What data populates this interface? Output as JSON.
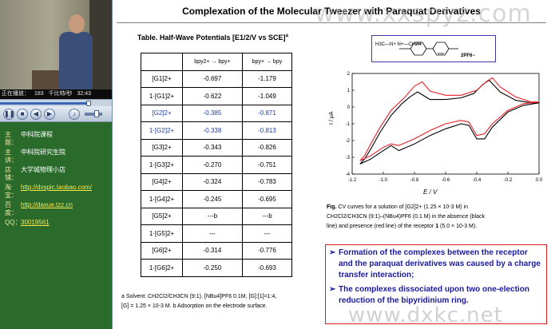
{
  "player": {
    "status": {
      "state": "正在播放：",
      "index": "183",
      "bitrate": "千比特/秒",
      "time": "32:43"
    },
    "seek_progress": 0.79,
    "controls": [
      {
        "name": "pause-button",
        "glyph": "❚❚"
      },
      {
        "name": "stop-button",
        "glyph": "■"
      },
      {
        "name": "previous-button",
        "glyph": "◀"
      },
      {
        "name": "next-button",
        "glyph": "▶"
      },
      {
        "name": "mute-button",
        "glyph": "♪"
      }
    ],
    "volume": 0.7
  },
  "info": {
    "rows": [
      {
        "label": "主题：",
        "value": "中科院课程",
        "link": false
      },
      {
        "label": "主讲：",
        "value": "中科院研究生院",
        "link": false
      },
      {
        "label": "店铺：",
        "value": "大学城物理小店",
        "link": false
      },
      {
        "label": "淘宝：",
        "value": "http://dxspic.taobao.com/",
        "link": true
      },
      {
        "label": "百度：",
        "value": "http://daxue.tzz.cn",
        "link": true
      },
      {
        "label": "QQ：",
        "value": "30019561",
        "link": true
      }
    ]
  },
  "slide": {
    "title": "Complexation of the Molecular Tweezer with Paraquat Derivatives",
    "watermark_top": "www.xxspyz.com",
    "watermark_bottom": "www.dxkc.net",
    "table": {
      "caption": "Table. Half-Wave Potentials [E1/2/V vs SCE]",
      "caption_mark": "a",
      "headers": [
        "",
        "bpy2+ → bpy+",
        "bpy+ → bpy"
      ],
      "rows": [
        {
          "label": "[G1]2+",
          "v1": "-0.697",
          "v2": "-1.179",
          "blue": false
        },
        {
          "label": "1·[G1]2+",
          "v1": "-0.622",
          "v2": "-1.049",
          "blue": false
        },
        {
          "label": "[G2]2+",
          "v1": "-0.385",
          "v2": "-0.871",
          "blue": true
        },
        {
          "label": "1·[G2]2+",
          "v1": "-0.338",
          "v2": "-0.813",
          "blue": true
        },
        {
          "label": "[G3]2+",
          "v1": "-0.343",
          "v2": "-0.826",
          "blue": false
        },
        {
          "label": "1·[G3]2+",
          "v1": "-0.270",
          "v2": "-0.751",
          "blue": false
        },
        {
          "label": "[G4]2+",
          "v1": "-0.324",
          "v2": "-0.783",
          "blue": false
        },
        {
          "label": "1·[G4]2+",
          "v1": "-0.245",
          "v2": "-0.695",
          "blue": false
        },
        {
          "label": "[G5]2+",
          "v1": "---b",
          "v2": "---b",
          "blue": false
        },
        {
          "label": "1·[G5]2+",
          "v1": "---",
          "v2": "---",
          "blue": false
        },
        {
          "label": "[G6]2+",
          "v1": "-0.314",
          "v2": "-0.776",
          "blue": false
        },
        {
          "label": "1·[G6]2+",
          "v1": "-0.250",
          "v2": "-0.693",
          "blue": false
        }
      ],
      "footnote_line1": "a Solvent: CH2Cl2/CH3CN (9:1), [NBu4]PF6 0.1M, [G]:[1]=1:4,",
      "footnote_line2": "[G] = 1.25 × 10-3 M. b Adsorption on the electrode surface."
    },
    "structure": {
      "formula": "H3C—N+  N+—CH2R",
      "counterion": "2PF6−"
    },
    "chart_data": {
      "type": "line",
      "title": "",
      "xlabel": "E / V",
      "ylabel": "I / μA",
      "xlim": [
        -1.2,
        0.0
      ],
      "ylim": [
        -4,
        2
      ],
      "xticks": [
        "-1.2",
        "-1.0",
        "-0.8",
        "-0.6",
        "-0.4",
        "-0.2",
        "0.0"
      ],
      "yticks": [
        "2",
        "1",
        "0",
        "-1",
        "-2",
        "-3",
        "-4"
      ],
      "grid": false,
      "series": [
        {
          "color": "#000000",
          "x": [
            -1.15,
            -1.08,
            -1.0,
            -0.95,
            -0.9,
            -0.8,
            -0.7,
            -0.6,
            -0.5,
            -0.45,
            -0.4,
            -0.35,
            -0.3,
            -0.2,
            -0.1,
            0.0,
            -0.05,
            -0.15,
            -0.25,
            -0.32,
            -0.36,
            -0.42,
            -0.5,
            -0.6,
            -0.7,
            -0.78,
            -0.83,
            -0.88,
            -0.95,
            -1.02,
            -1.08,
            -1.12,
            -1.15
          ],
          "y": [
            -3.4,
            -3.1,
            -2.6,
            -2.3,
            -2.6,
            -2.2,
            -1.7,
            -1.3,
            -1.0,
            -1.1,
            -1.9,
            -1.9,
            -1.2,
            -0.3,
            0.1,
            0.25,
            0.25,
            0.4,
            0.9,
            1.6,
            1.35,
            0.8,
            0.55,
            0.45,
            0.45,
            0.9,
            0.6,
            0.2,
            -0.5,
            -1.5,
            -2.5,
            -3.1,
            -3.4
          ]
        },
        {
          "color": "#e8202a",
          "x": [
            -1.15,
            -1.08,
            -1.0,
            -0.95,
            -0.9,
            -0.8,
            -0.7,
            -0.6,
            -0.5,
            -0.45,
            -0.4,
            -0.35,
            -0.3,
            -0.2,
            -0.1,
            0.0,
            -0.05,
            -0.15,
            -0.25,
            -0.3,
            -0.34,
            -0.4,
            -0.5,
            -0.6,
            -0.7,
            -0.75,
            -0.8,
            -0.86,
            -0.95,
            -1.02,
            -1.08,
            -1.12,
            -1.15
          ],
          "y": [
            -3.2,
            -2.9,
            -2.4,
            -2.2,
            -2.3,
            -1.9,
            -1.4,
            -1.0,
            -0.8,
            -0.9,
            -1.7,
            -1.6,
            -1.0,
            -0.2,
            0.2,
            0.3,
            0.3,
            0.6,
            1.2,
            1.75,
            1.5,
            1.0,
            0.7,
            0.7,
            0.95,
            1.5,
            1.25,
            0.6,
            -0.2,
            -1.2,
            -2.2,
            -2.9,
            -3.2
          ]
        }
      ]
    },
    "figure_caption": {
      "bold_label": "Fig.",
      "line1": " CV curves for a solution of [G2]2+ (1.25 × 10-3 M) in",
      "line2": "CH2Cl2/CH3CN (9:1)–(NBu4)PF6 (0.1 M) in the absence (black",
      "line3_a": "line) and presence (red line) of the receptor ",
      "line3_b": "1",
      "line3_c": " (5.0 × 10-3 M)."
    },
    "bullets": [
      "Formation of the complexes between the receptor and the paraquat derivatives was caused by a charge transfer interaction;",
      "The complexes dissociated upon two one-election reduction of the bipyridinium ring."
    ],
    "bullet_arrow": "➢"
  }
}
